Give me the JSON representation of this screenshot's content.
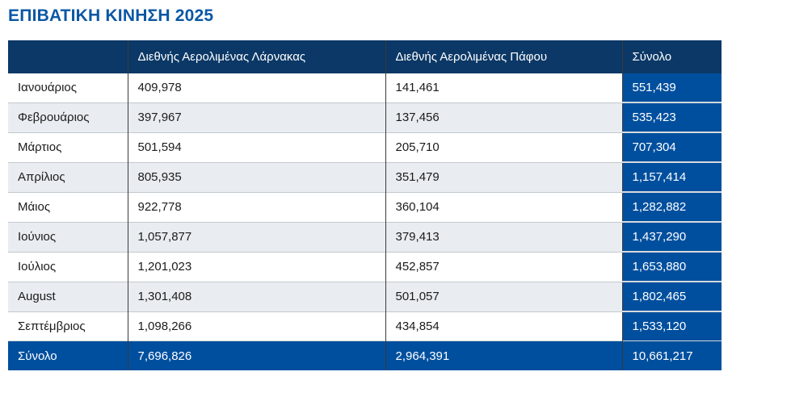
{
  "page": {
    "title": "ΕΠΙΒΑΤΙΚΗ ΚΙΝΗΣΗ 2025"
  },
  "colors": {
    "title_color": "#0B57A5",
    "header_bg": "#0B3866",
    "accent_bg": "#004F9E",
    "stripe_bg": "#E9EDF1",
    "light_border": "#C2C8CD",
    "dark_divider": "#3A3A3A",
    "body_text": "#1B1B1B"
  },
  "table": {
    "columns": {
      "month": "",
      "larnaca": "Διεθνής Αερολιμένας Λάρνακας",
      "paphos": "Διεθνής Αερολιμένας Πάφου",
      "total": "Σύνολο"
    },
    "rows": [
      {
        "month": "Ιανουάριος",
        "larnaca": "409,978",
        "paphos": "141,461",
        "total": "551,439"
      },
      {
        "month": "Φεβρουάριος",
        "larnaca": "397,967",
        "paphos": "137,456",
        "total": "535,423"
      },
      {
        "month": "Μάρτιος",
        "larnaca": "501,594",
        "paphos": "205,710",
        "total": "707,304"
      },
      {
        "month": "Απρίλιος",
        "larnaca": "805,935",
        "paphos": "351,479",
        "total": "1,157,414"
      },
      {
        "month": "Μάιος",
        "larnaca": "922,778",
        "paphos": "360,104",
        "total": "1,282,882"
      },
      {
        "month": "Ιούνιος",
        "larnaca": "1,057,877",
        "paphos": "379,413",
        "total": "1,437,290"
      },
      {
        "month": "Ιούλιος",
        "larnaca": "1,201,023",
        "paphos": "452,857",
        "total": "1,653,880"
      },
      {
        "month": "August",
        "larnaca": "1,301,408",
        "paphos": "501,057",
        "total": "1,802,465"
      },
      {
        "month": "Σεπτέμβριος",
        "larnaca": "1,098,266",
        "paphos": "434,854",
        "total": "1,533,120"
      }
    ],
    "footer": {
      "label": "Σύνολο",
      "larnaca": "7,696,826",
      "paphos": "2,964,391",
      "total": "10,661,217"
    }
  }
}
